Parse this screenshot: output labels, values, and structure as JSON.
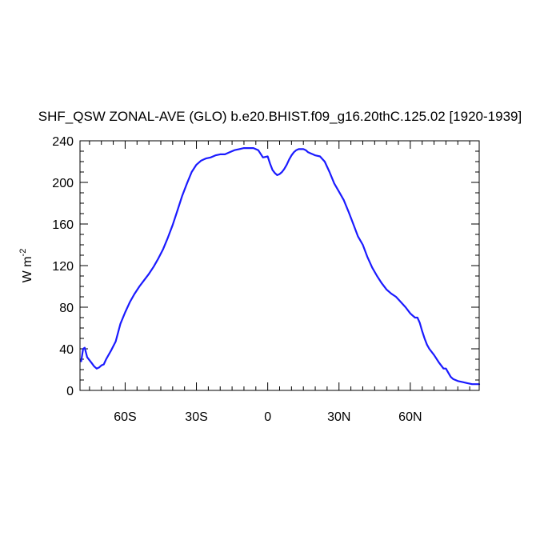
{
  "chart_data": {
    "type": "line",
    "title": "SHF_QSW ZONAL-AVE (GLO) b.e20.BHIST.f09_g16.20thC.125.02 [1920-1939]",
    "ylabel": "W m",
    "ylabel_exponent": "-2",
    "xlabel": "",
    "xlim": [
      -79,
      89
    ],
    "ylim": [
      0,
      240
    ],
    "x_ticks": [
      {
        "value": -60,
        "label": "60S"
      },
      {
        "value": -30,
        "label": "30S"
      },
      {
        "value": 0,
        "label": "0"
      },
      {
        "value": 30,
        "label": "30N"
      },
      {
        "value": 60,
        "label": "60N"
      }
    ],
    "y_ticks": [
      {
        "value": 0,
        "label": "0"
      },
      {
        "value": 40,
        "label": "40"
      },
      {
        "value": 80,
        "label": "80"
      },
      {
        "value": 120,
        "label": "120"
      },
      {
        "value": 160,
        "label": "160"
      },
      {
        "value": 200,
        "label": "200"
      },
      {
        "value": 240,
        "label": "240"
      }
    ],
    "grid": false,
    "line_color": "#1a1aff",
    "series": [
      {
        "x": [
          -78.5,
          -77.7,
          -77,
          -76,
          -75,
          -74,
          -73,
          -72,
          -71,
          -70,
          -69,
          -68,
          -66,
          -64,
          -62,
          -60,
          -58,
          -56,
          -54,
          -52,
          -50,
          -48,
          -46,
          -44,
          -42,
          -40,
          -38,
          -36,
          -34,
          -32,
          -30,
          -28,
          -26,
          -24,
          -22,
          -20,
          -18,
          -16,
          -14,
          -12,
          -10,
          -8,
          -6,
          -4,
          -2,
          0,
          1,
          2,
          3,
          4,
          5,
          6,
          7,
          8,
          9,
          10,
          11,
          12,
          13,
          14,
          15,
          16,
          17,
          18,
          19,
          20,
          22,
          24,
          26,
          28,
          30,
          32,
          34,
          36,
          38,
          40,
          42,
          44,
          46,
          48,
          50,
          52,
          54,
          56,
          58,
          60,
          61,
          62,
          63,
          64,
          65,
          66,
          67,
          68,
          70,
          72,
          74,
          75,
          76,
          77,
          78,
          80,
          82,
          84,
          86,
          88,
          89
        ],
        "y": [
          28,
          40,
          41,
          32,
          29,
          26,
          23,
          21,
          22,
          24,
          25,
          30,
          38,
          47,
          64,
          75,
          85,
          93,
          100,
          106,
          112,
          119,
          127,
          136,
          147,
          159,
          173,
          187,
          199,
          210,
          217,
          221,
          223,
          224,
          226,
          227,
          227,
          229,
          231,
          232,
          233,
          233,
          233,
          231,
          224,
          225,
          218,
          212,
          209,
          207,
          208,
          210,
          213,
          217,
          222,
          226,
          229,
          231,
          232,
          232,
          232,
          231,
          229,
          228,
          227,
          226,
          225,
          220,
          210,
          199,
          191,
          183,
          172,
          160,
          148,
          140,
          128,
          118,
          110,
          103,
          97,
          93,
          90,
          85,
          80,
          74,
          72,
          70,
          70,
          65,
          57,
          50,
          44,
          40,
          34,
          27,
          21,
          21,
          17,
          13,
          11,
          9,
          8,
          7,
          6,
          6,
          6
        ]
      }
    ]
  }
}
